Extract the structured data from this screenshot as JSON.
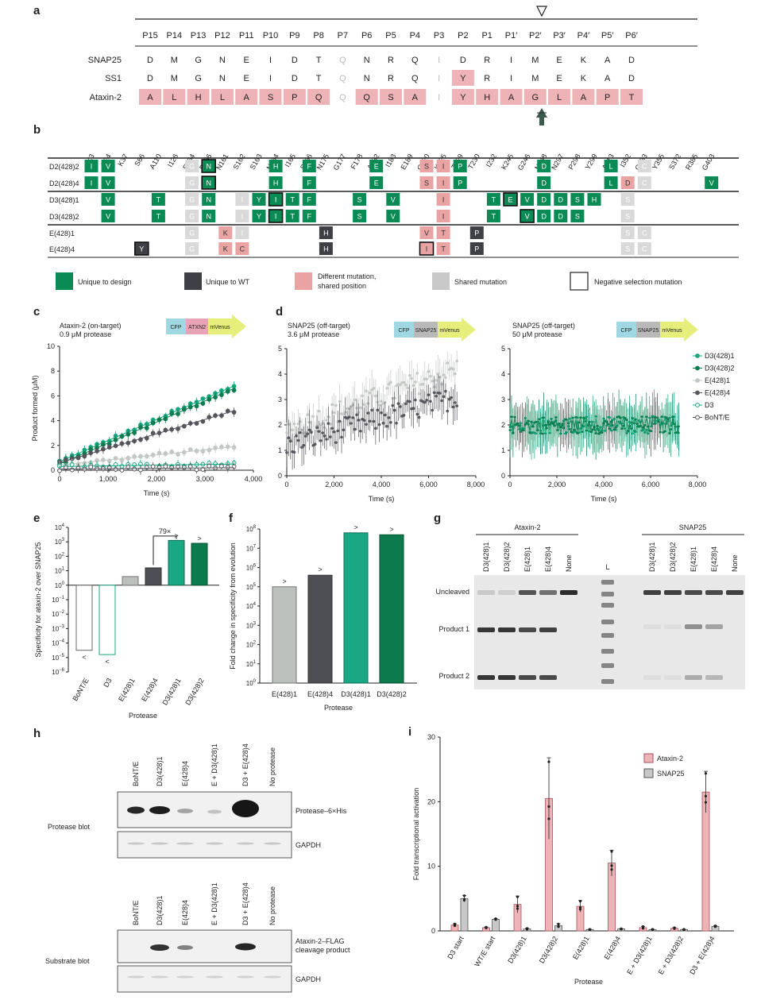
{
  "colors": {
    "unique_design": "#0a8a55",
    "unique_wt": "#3f3f46",
    "different_mutation": "#e9a3a3",
    "shared_mutation": "#c9c9c9",
    "pink_cell": "#eeb3b7",
    "grey_cell": "#d9d9d9",
    "teal_bar": "#1aa884",
    "dark_green_bar": "#0d7a4e",
    "light_grey_bar": "#bcc0bd",
    "dark_grey_bar": "#4e4e55"
  },
  "panel_labels": [
    "a",
    "b",
    "c",
    "d",
    "e",
    "f",
    "g",
    "h",
    "i"
  ],
  "panel_a": {
    "positions": [
      "P15",
      "P14",
      "P13",
      "P12",
      "P11",
      "P10",
      "P9",
      "P8",
      "P7",
      "P6",
      "P5",
      "P4",
      "P3",
      "P2",
      "P1",
      "P1′",
      "P2′",
      "P3′",
      "P4′",
      "P5′",
      "P6′"
    ],
    "rows": [
      {
        "name": "SNAP25",
        "seq": [
          "D",
          "M",
          "G",
          "N",
          "E",
          "I",
          "D",
          "T",
          "Q",
          "N",
          "R",
          "Q",
          "I",
          "D",
          "R",
          "I",
          "M",
          "E",
          "K",
          "A",
          "D"
        ],
        "hl": [
          0,
          0,
          0,
          0,
          0,
          0,
          0,
          0,
          3,
          0,
          0,
          0,
          3,
          0,
          0,
          0,
          0,
          0,
          0,
          0,
          0
        ]
      },
      {
        "name": "SS1",
        "seq": [
          "D",
          "M",
          "G",
          "N",
          "E",
          "I",
          "D",
          "T",
          "Q",
          "N",
          "R",
          "Q",
          "I",
          "Y",
          "R",
          "I",
          "M",
          "E",
          "K",
          "A",
          "D"
        ],
        "hl": [
          0,
          0,
          0,
          0,
          0,
          0,
          0,
          0,
          3,
          0,
          0,
          0,
          3,
          1,
          0,
          0,
          0,
          0,
          0,
          0,
          0
        ]
      },
      {
        "name": "Ataxin-2",
        "seq": [
          "A",
          "L",
          "H",
          "L",
          "A",
          "S",
          "P",
          "Q",
          "Q",
          "Q",
          "S",
          "A",
          "I",
          "Y",
          "H",
          "A",
          "G",
          "L",
          "A",
          "P",
          "T"
        ],
        "hl": [
          1,
          1,
          1,
          1,
          1,
          1,
          1,
          1,
          3,
          1,
          1,
          1,
          3,
          1,
          1,
          1,
          1,
          1,
          1,
          1,
          1
        ]
      }
    ]
  },
  "panel_b": {
    "residues": [
      "K3",
      "G24",
      "K37",
      "S66",
      "A110",
      "I126",
      "E154",
      "D156",
      "N161",
      "S162",
      "S163",
      "N164",
      "I165",
      "S166",
      "N175",
      "G177",
      "F178",
      "A182",
      "I183",
      "E189",
      "G220",
      "K225",
      "T229",
      "T230",
      "I232",
      "K245",
      "G246",
      "N248",
      "N297",
      "P298",
      "Y299",
      "A313",
      "I352",
      "G353",
      "Y355",
      "S372",
      "R385",
      "G403"
    ],
    "rows": [
      {
        "name": "D2(428)2",
        "cells": [
          [
            0,
            "I",
            1,
            0
          ],
          [
            1,
            "V",
            1,
            0
          ],
          [
            6,
            "G",
            4,
            0
          ],
          [
            7,
            "N",
            1,
            1
          ],
          [
            11,
            "H",
            1,
            0
          ],
          [
            13,
            "F",
            1,
            0
          ],
          [
            17,
            "E",
            1,
            0
          ],
          [
            20,
            "S",
            3,
            0
          ],
          [
            21,
            "I",
            3,
            0
          ],
          [
            22,
            "P",
            1,
            0
          ],
          [
            27,
            "D",
            1,
            0
          ],
          [
            31,
            "L",
            1,
            0
          ],
          [
            33,
            "C",
            4,
            0
          ]
        ]
      },
      {
        "name": "D2(428)4",
        "cells": [
          [
            0,
            "I",
            1,
            0
          ],
          [
            1,
            "V",
            1,
            0
          ],
          [
            6,
            "G",
            4,
            0
          ],
          [
            7,
            "N",
            1,
            1
          ],
          [
            11,
            "H",
            1,
            0
          ],
          [
            13,
            "F",
            1,
            0
          ],
          [
            17,
            "E",
            1,
            0
          ],
          [
            20,
            "S",
            3,
            0
          ],
          [
            21,
            "I",
            3,
            0
          ],
          [
            22,
            "P",
            1,
            0
          ],
          [
            27,
            "D",
            1,
            0
          ],
          [
            31,
            "L",
            1,
            0
          ],
          [
            32,
            "D",
            3,
            0
          ],
          [
            33,
            "C",
            4,
            0
          ],
          [
            37,
            "V",
            1,
            0
          ]
        ]
      },
      {
        "name": "D3(428)1",
        "cells": [
          [
            1,
            "V",
            1,
            0
          ],
          [
            4,
            "T",
            1,
            0
          ],
          [
            6,
            "G",
            4,
            0
          ],
          [
            7,
            "N",
            1,
            0
          ],
          [
            9,
            "I",
            4,
            0
          ],
          [
            10,
            "Y",
            1,
            0
          ],
          [
            11,
            "I",
            1,
            1
          ],
          [
            12,
            "T",
            1,
            0
          ],
          [
            13,
            "F",
            1,
            0
          ],
          [
            16,
            "S",
            1,
            0
          ],
          [
            18,
            "V",
            1,
            0
          ],
          [
            21,
            "I",
            3,
            0
          ],
          [
            24,
            "T",
            1,
            0
          ],
          [
            25,
            "E",
            1,
            1
          ],
          [
            26,
            "V",
            1,
            0
          ],
          [
            27,
            "D",
            1,
            0
          ],
          [
            28,
            "D",
            1,
            0
          ],
          [
            29,
            "S",
            1,
            0
          ],
          [
            30,
            "H",
            1,
            0
          ],
          [
            32,
            "S",
            4,
            0
          ]
        ]
      },
      {
        "name": "D3(428)2",
        "cells": [
          [
            1,
            "V",
            1,
            0
          ],
          [
            4,
            "T",
            1,
            0
          ],
          [
            6,
            "G",
            4,
            0
          ],
          [
            7,
            "N",
            1,
            0
          ],
          [
            9,
            "I",
            4,
            0
          ],
          [
            10,
            "Y",
            1,
            0
          ],
          [
            11,
            "I",
            1,
            1
          ],
          [
            12,
            "T",
            1,
            0
          ],
          [
            13,
            "F",
            1,
            0
          ],
          [
            16,
            "S",
            1,
            0
          ],
          [
            18,
            "V",
            1,
            0
          ],
          [
            21,
            "I",
            3,
            0
          ],
          [
            24,
            "T",
            1,
            0
          ],
          [
            26,
            "V",
            1,
            1
          ],
          [
            27,
            "D",
            1,
            0
          ],
          [
            28,
            "D",
            1,
            0
          ],
          [
            29,
            "S",
            1,
            0
          ],
          [
            32,
            "S",
            4,
            0
          ]
        ]
      },
      {
        "name": "E(428)1",
        "cells": [
          [
            6,
            "G",
            4,
            0
          ],
          [
            8,
            "K",
            3,
            0
          ],
          [
            9,
            "I",
            4,
            0
          ],
          [
            14,
            "H",
            2,
            0
          ],
          [
            20,
            "V",
            3,
            0
          ],
          [
            21,
            "T",
            3,
            0
          ],
          [
            23,
            "P",
            2,
            0
          ],
          [
            32,
            "S",
            4,
            0
          ],
          [
            33,
            "C",
            4,
            0
          ]
        ]
      },
      {
        "name": "E(428)4",
        "cells": [
          [
            3,
            "Y",
            2,
            1
          ],
          [
            6,
            "G",
            4,
            0
          ],
          [
            8,
            "K",
            3,
            0
          ],
          [
            9,
            "C",
            3,
            0
          ],
          [
            14,
            "H",
            2,
            0
          ],
          [
            20,
            "I",
            3,
            1
          ],
          [
            21,
            "T",
            3,
            0
          ],
          [
            23,
            "P",
            2,
            0
          ],
          [
            32,
            "S",
            4,
            0
          ],
          [
            33,
            "C",
            4,
            0
          ]
        ]
      }
    ],
    "legend": [
      "Unique to design",
      "Unique to WT",
      "Different mutation, shared position",
      "Shared mutation",
      "Negative selection mutation"
    ]
  },
  "panel_c": {
    "title1": "Ataxin-2 (on-target)",
    "title2": "0.9 μM protease",
    "construct": [
      "CFP",
      "ATXN2",
      "mVenus"
    ],
    "ylabel": "Product formed (μM)",
    "xlabel": "Time (s)"
  },
  "panel_d": {
    "left_title1": "SNAP25 (off-target)",
    "left_title2": "3.6 μM protease",
    "right_title1": "SNAP25 (off-target)",
    "right_title2": "50 μM protease",
    "construct": [
      "CFP",
      "SNAP25",
      "mVenus"
    ],
    "xlabel": "Time (s)",
    "legend": [
      "D3(428)1",
      "D3(428)2",
      "E(428)1",
      "E(428)4",
      "D3",
      "BoNT/E"
    ]
  },
  "panel_e": {
    "ylabel": "Specificity for ataxin-2 over SNAP25",
    "xlabel": "Protease",
    "categories": [
      "BoNT/E",
      "D3",
      "E(428)1",
      "E(428)4",
      "D3(428)1",
      "D3(428)2"
    ],
    "annotation": "79×",
    "qualifiers": [
      "<",
      "<",
      "",
      "",
      ">",
      ">"
    ]
  },
  "panel_f": {
    "ylabel": "Fold change in specificity from evolution",
    "xlabel": "Protease",
    "categories": [
      "E(428)1",
      "E(428)4",
      "D3(428)1",
      "D3(428)2"
    ],
    "qualifiers": [
      ">",
      ">",
      ">",
      ">"
    ]
  },
  "panel_g": {
    "group_left": "Ataxin-2",
    "group_right": "SNAP25",
    "lanes_left": [
      "D3(428)1",
      "D3(428)2",
      "E(428)1",
      "E(428)4",
      "None"
    ],
    "ladder": "L",
    "lanes_right": [
      "D3(428)1",
      "D3(428)2",
      "E(428)1",
      "E(428)4",
      "None"
    ],
    "bands": [
      "Uncleaved",
      "Product 1",
      "Product 2"
    ]
  },
  "panel_h": {
    "lanes": [
      "BoNT/E",
      "D3(428)1",
      "E(428)4",
      "E + D3(428)1",
      "D3 + E(428)4",
      "No protease"
    ],
    "blot1_label": "Protease blot",
    "blot1_band": "Protease–6×His",
    "blot1_loading": "GAPDH",
    "blot2_label": "Substrate blot",
    "blot2_band1": "Ataxin-2–FLAG",
    "blot2_band2": "cleavage product",
    "blot2_loading": "GAPDH"
  },
  "panel_i": {
    "ylabel": "Fold transcriptional activation",
    "xlabel": "Protease",
    "legend": [
      "Ataxin-2",
      "SNAP25"
    ]
  },
  "chart_data": [
    {
      "panel": "c",
      "type": "line",
      "xlabel": "Time (s)",
      "ylabel": "Product formed (μM)",
      "xlim": [
        0,
        4000
      ],
      "ylim": [
        0,
        10
      ],
      "xticks": [
        "0",
        "1,000",
        "2,000",
        "3,000",
        "4,000"
      ],
      "yticks": [
        "0",
        "2",
        "4",
        "6",
        "8",
        "10"
      ],
      "series": [
        {
          "name": "D3(428)1",
          "x_end": 3600,
          "y_start": 0.7,
          "y_end": 6.8,
          "color": "#14a77e",
          "marker": "filled"
        },
        {
          "name": "D3(428)2",
          "x_end": 3600,
          "y_start": 0.5,
          "y_end": 6.6,
          "color": "#0b7d4f",
          "marker": "filled"
        },
        {
          "name": "E(428)4",
          "x_end": 3600,
          "y_start": 0.6,
          "y_end": 4.8,
          "color": "#55555c",
          "marker": "filled"
        },
        {
          "name": "E(428)1",
          "x_end": 3600,
          "y_start": 0.4,
          "y_end": 1.9,
          "color": "#c4c8c5",
          "marker": "filled"
        },
        {
          "name": "D3",
          "x_end": 3600,
          "y_start": 0.3,
          "y_end": 0.5,
          "color": "#14a77e",
          "marker": "open"
        },
        {
          "name": "BoNT/E",
          "x_end": 3600,
          "y_start": 0.1,
          "y_end": 0.2,
          "color": "#55555c",
          "marker": "open"
        }
      ]
    },
    {
      "panel": "d-left",
      "type": "line",
      "xlabel": "Time (s)",
      "xlim": [
        0,
        8000
      ],
      "ylim": [
        0,
        5
      ],
      "xticks": [
        "0",
        "2,000",
        "4,000",
        "6,000",
        "8,000"
      ],
      "yticks": [
        "0",
        "1",
        "2",
        "3",
        "4",
        "5"
      ],
      "series": [
        {
          "name": "E(428)1",
          "x_end": 7200,
          "y_start": 1.8,
          "y_end": 4.2,
          "color": "#c4c8c5"
        },
        {
          "name": "E(428)4",
          "x_end": 7200,
          "y_start": 1.2,
          "y_end": 3.1,
          "color": "#55555c"
        }
      ]
    },
    {
      "panel": "d-right",
      "type": "line",
      "xlabel": "Time (s)",
      "xlim": [
        0,
        8000
      ],
      "ylim": [
        0,
        5
      ],
      "xticks": [
        "0",
        "2,000",
        "4,000",
        "6,000",
        "8,000"
      ],
      "yticks": [
        "0",
        "1",
        "2",
        "3",
        "4",
        "5"
      ],
      "series": [
        {
          "name": "D3(428)1",
          "x_end": 7200,
          "y_mean": 2.0,
          "color": "#14a77e"
        },
        {
          "name": "D3(428)2",
          "x_end": 7200,
          "y_mean": 2.0,
          "color": "#0b7d4f"
        }
      ]
    },
    {
      "panel": "e",
      "type": "bar",
      "yscale": "log",
      "ylim_exp": [
        -6,
        4
      ],
      "categories": [
        "BoNT/E",
        "D3",
        "E(428)1",
        "E(428)4",
        "D3(428)1",
        "D3(428)2"
      ],
      "log10_values": [
        -4.5,
        -4.8,
        0.6,
        1.2,
        3.1,
        2.9
      ],
      "styles": [
        "open-grey",
        "open-teal",
        "light-grey",
        "dark-grey",
        "teal",
        "dark-green"
      ]
    },
    {
      "panel": "f",
      "type": "bar",
      "yscale": "log",
      "ylim_exp": [
        0,
        8
      ],
      "categories": [
        "E(428)1",
        "E(428)4",
        "D3(428)1",
        "D3(428)2"
      ],
      "log10_values": [
        5.0,
        5.6,
        7.8,
        7.7
      ],
      "styles": [
        "light-grey",
        "dark-grey",
        "teal",
        "dark-green"
      ]
    },
    {
      "panel": "i",
      "type": "bar",
      "ylim": [
        0,
        30
      ],
      "yticks": [
        "0",
        "10",
        "20",
        "30"
      ],
      "categories": [
        "D3 start",
        "WT/E start",
        "D3(428)1",
        "D3(428)2",
        "E(428)1",
        "E(428)4",
        "E + D3(428)1",
        "E + D3(428)2",
        "D3 + E(428)4"
      ],
      "series": [
        {
          "name": "Ataxin-2",
          "values": [
            0.9,
            0.5,
            4.1,
            20.5,
            3.8,
            10.5,
            0.5,
            0.4,
            21.5
          ],
          "errors": [
            0.2,
            0.1,
            1.3,
            6.3,
            0.9,
            2.0,
            0.2,
            0.1,
            3.2
          ]
        },
        {
          "name": "SNAP25",
          "values": [
            5.0,
            1.8,
            0.3,
            0.8,
            0.2,
            0.3,
            0.2,
            0.2,
            0.7
          ],
          "errors": [
            0.5,
            0.1,
            0.1,
            0.3,
            0.05,
            0.05,
            0.05,
            0.05,
            0.1
          ]
        }
      ]
    }
  ]
}
